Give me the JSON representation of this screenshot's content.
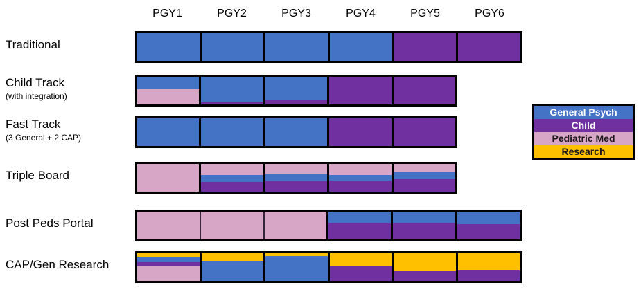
{
  "colors": {
    "General Psych": "#4472C4",
    "Child": "#7030A0",
    "Pediatric Med": "#D7A5C5",
    "Research": "#FFC000"
  },
  "legend": {
    "items": [
      {
        "label": "General Psych",
        "category": "General Psych",
        "text_color": "#FFFFFF"
      },
      {
        "label": "Child",
        "category": "Child",
        "text_color": "#FFFFFF"
      },
      {
        "label": "Pediatric Med",
        "category": "Pediatric Med",
        "text_color": "#1a1a1a"
      },
      {
        "label": "Research",
        "category": "Research",
        "text_color": "#1a1a1a"
      }
    ]
  },
  "chart_data": {
    "type": "bar",
    "subtype": "horizontal-stacked-timeline",
    "categories_x": [
      "PGY1",
      "PGY2",
      "PGY3",
      "PGY4",
      "PGY5",
      "PGY6"
    ],
    "legend_entries": [
      "General Psych",
      "Child",
      "Pediatric Med",
      "Research"
    ],
    "tracks": [
      {
        "label": "Traditional",
        "sublabel": "",
        "segments": [
          {
            "year": "PGY1",
            "bands": [
              {
                "category": "General Psych",
                "fraction": 1.0
              }
            ]
          },
          {
            "year": "PGY2",
            "bands": [
              {
                "category": "General Psych",
                "fraction": 1.0
              }
            ]
          },
          {
            "year": "PGY3",
            "bands": [
              {
                "category": "General Psych",
                "fraction": 1.0
              }
            ]
          },
          {
            "year": "PGY4",
            "bands": [
              {
                "category": "General Psych",
                "fraction": 1.0
              }
            ]
          },
          {
            "year": "PGY5",
            "bands": [
              {
                "category": "Child",
                "fraction": 1.0
              }
            ]
          },
          {
            "year": "PGY6",
            "bands": [
              {
                "category": "Child",
                "fraction": 1.0
              }
            ]
          }
        ]
      },
      {
        "label": "Child Track",
        "sublabel": "(with integration)",
        "segments": [
          {
            "year": "PGY1",
            "bands": [
              {
                "category": "General Psych",
                "fraction": 0.45
              },
              {
                "category": "Pediatric Med",
                "fraction": 0.55
              }
            ]
          },
          {
            "year": "PGY2",
            "bands": [
              {
                "category": "General Psych",
                "fraction": 0.89
              },
              {
                "category": "Child",
                "fraction": 0.11
              }
            ]
          },
          {
            "year": "PGY3",
            "bands": [
              {
                "category": "General Psych",
                "fraction": 0.86
              },
              {
                "category": "Child",
                "fraction": 0.14
              }
            ]
          },
          {
            "year": "PGY4",
            "bands": [
              {
                "category": "Child",
                "fraction": 1.0
              }
            ]
          },
          {
            "year": "PGY5",
            "bands": [
              {
                "category": "Child",
                "fraction": 1.0
              }
            ]
          }
        ]
      },
      {
        "label": "Fast Track",
        "sublabel": "(3 General + 2 CAP)",
        "segments": [
          {
            "year": "PGY1",
            "bands": [
              {
                "category": "General Psych",
                "fraction": 1.0
              }
            ]
          },
          {
            "year": "PGY2",
            "bands": [
              {
                "category": "General Psych",
                "fraction": 1.0
              }
            ]
          },
          {
            "year": "PGY3",
            "bands": [
              {
                "category": "General Psych",
                "fraction": 1.0
              }
            ]
          },
          {
            "year": "PGY4",
            "bands": [
              {
                "category": "Child",
                "fraction": 1.0
              }
            ]
          },
          {
            "year": "PGY5",
            "bands": [
              {
                "category": "Child",
                "fraction": 1.0
              }
            ]
          }
        ]
      },
      {
        "label": "Triple Board",
        "sublabel": "",
        "segments": [
          {
            "year": "PGY1",
            "bands": [
              {
                "category": "Pediatric Med",
                "fraction": 1.0
              }
            ]
          },
          {
            "year": "PGY2",
            "bands": [
              {
                "category": "Pediatric Med",
                "fraction": 0.4
              },
              {
                "category": "General Psych",
                "fraction": 0.26
              },
              {
                "category": "Child",
                "fraction": 0.34
              }
            ]
          },
          {
            "year": "PGY3",
            "bands": [
              {
                "category": "Pediatric Med",
                "fraction": 0.36
              },
              {
                "category": "General Psych",
                "fraction": 0.25
              },
              {
                "category": "Child",
                "fraction": 0.39
              }
            ]
          },
          {
            "year": "PGY4",
            "bands": [
              {
                "category": "Pediatric Med",
                "fraction": 0.4
              },
              {
                "category": "General Psych",
                "fraction": 0.21
              },
              {
                "category": "Child",
                "fraction": 0.39
              }
            ]
          },
          {
            "year": "PGY5",
            "bands": [
              {
                "category": "Pediatric Med",
                "fraction": 0.29
              },
              {
                "category": "General Psych",
                "fraction": 0.26
              },
              {
                "category": "Child",
                "fraction": 0.45
              }
            ]
          }
        ]
      },
      {
        "label": "Post Peds Portal",
        "sublabel": "",
        "segments": [
          {
            "year": "PGY1",
            "divider_after": "thin",
            "bands": [
              {
                "category": "Pediatric Med",
                "fraction": 1.0
              }
            ]
          },
          {
            "year": "PGY2",
            "divider_after": "thin",
            "bands": [
              {
                "category": "Pediatric Med",
                "fraction": 1.0
              }
            ]
          },
          {
            "year": "PGY3",
            "bands": [
              {
                "category": "Pediatric Med",
                "fraction": 1.0
              }
            ]
          },
          {
            "year": "PGY4",
            "bands": [
              {
                "category": "General Psych",
                "fraction": 0.42
              },
              {
                "category": "Child",
                "fraction": 0.58
              }
            ]
          },
          {
            "year": "PGY5",
            "bands": [
              {
                "category": "General Psych",
                "fraction": 0.42
              },
              {
                "category": "Child",
                "fraction": 0.58
              }
            ]
          },
          {
            "year": "PGY6",
            "bands": [
              {
                "category": "General Psych",
                "fraction": 0.46
              },
              {
                "category": "Child",
                "fraction": 0.54
              }
            ]
          }
        ]
      },
      {
        "label": "CAP/Gen Research",
        "sublabel": "",
        "segments": [
          {
            "year": "PGY1",
            "bands": [
              {
                "category": "Research",
                "fraction": 0.13
              },
              {
                "category": "General Psych",
                "fraction": 0.19
              },
              {
                "category": "Child",
                "fraction": 0.14
              },
              {
                "category": "Pediatric Med",
                "fraction": 0.54
              }
            ]
          },
          {
            "year": "PGY2",
            "bands": [
              {
                "category": "Research",
                "fraction": 0.27
              },
              {
                "category": "General Psych",
                "fraction": 0.73
              }
            ]
          },
          {
            "year": "PGY3",
            "bands": [
              {
                "category": "Research",
                "fraction": 0.09
              },
              {
                "category": "General Psych",
                "fraction": 0.91
              }
            ]
          },
          {
            "year": "PGY4",
            "bands": [
              {
                "category": "Research",
                "fraction": 0.45
              },
              {
                "category": "Child",
                "fraction": 0.55
              }
            ]
          },
          {
            "year": "PGY5",
            "bands": [
              {
                "category": "Research",
                "fraction": 0.66
              },
              {
                "category": "Child",
                "fraction": 0.34
              }
            ]
          },
          {
            "year": "PGY6",
            "bands": [
              {
                "category": "Research",
                "fraction": 0.62
              },
              {
                "category": "Child",
                "fraction": 0.38
              }
            ]
          }
        ]
      }
    ]
  }
}
